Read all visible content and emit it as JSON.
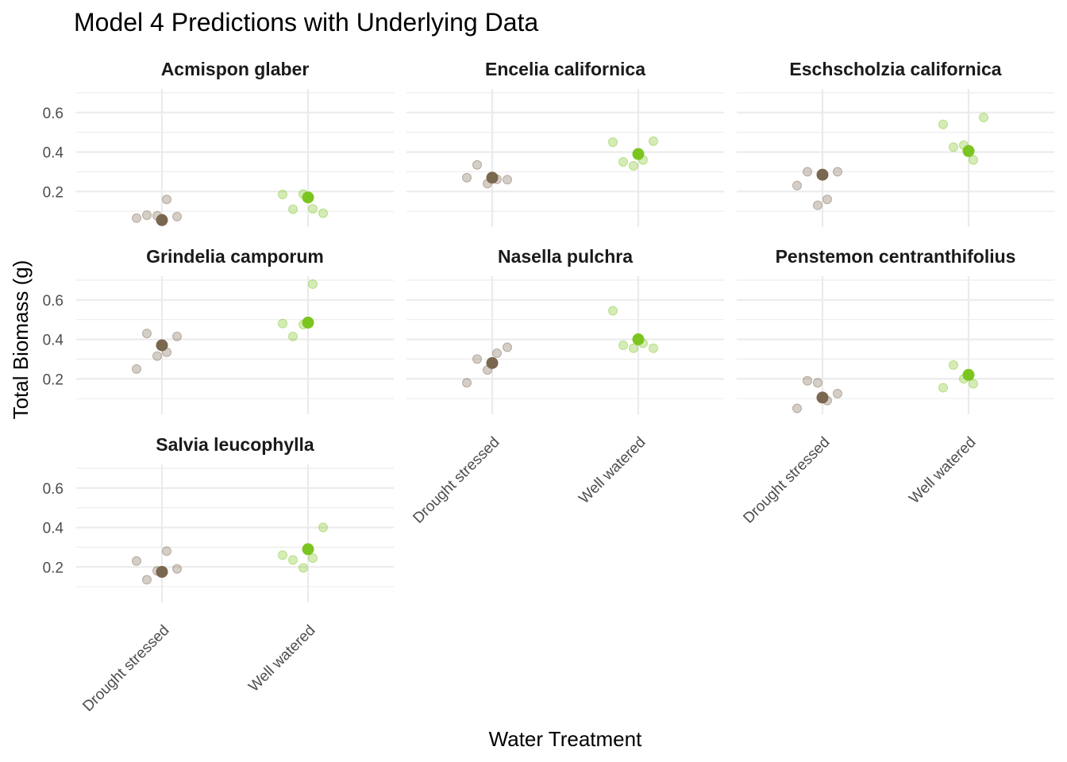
{
  "chart_data": {
    "type": "scatter",
    "title": "Model 4 Predictions with Underlying Data",
    "xlabel": "Water Treatment",
    "ylabel": "Total Biomass (g)",
    "categories": [
      "Drought stressed",
      "Well watered"
    ],
    "y_ticks": [
      0.2,
      0.4,
      0.6
    ],
    "ylim": [
      0.02,
      0.72
    ],
    "grid": true,
    "legend": "none",
    "colors": {
      "Drought stressed": "#7a6750",
      "Well watered": "#7cc520"
    },
    "panels": [
      {
        "species": "Acmispon glaber",
        "prediction": {
          "Drought stressed": 0.055,
          "Well watered": 0.17
        },
        "observations": {
          "Drought stressed": [
            0.065,
            0.08,
            0.077,
            0.16,
            0.073
          ],
          "Well watered": [
            0.185,
            0.11,
            0.187,
            0.112,
            0.09
          ]
        }
      },
      {
        "species": "Encelia californica",
        "prediction": {
          "Drought stressed": 0.27,
          "Well watered": 0.39
        },
        "observations": {
          "Drought stressed": [
            0.27,
            0.335,
            0.24,
            0.262,
            0.26
          ],
          "Well watered": [
            0.45,
            0.35,
            0.33,
            0.36,
            0.455
          ]
        }
      },
      {
        "species": "Eschscholzia californica",
        "prediction": {
          "Drought stressed": 0.285,
          "Well watered": 0.405
        },
        "observations": {
          "Drought stressed": [
            0.23,
            0.3,
            0.13,
            0.16,
            0.3
          ],
          "Well watered": [
            0.54,
            0.425,
            0.435,
            0.36,
            0.575
          ]
        }
      },
      {
        "species": "Grindelia camporum",
        "prediction": {
          "Drought stressed": 0.37,
          "Well watered": 0.485
        },
        "observations": {
          "Drought stressed": [
            0.25,
            0.43,
            0.315,
            0.335,
            0.415
          ],
          "Well watered": [
            0.48,
            0.415,
            0.475,
            0.68
          ]
        }
      },
      {
        "species": "Nasella pulchra",
        "prediction": {
          "Drought stressed": 0.28,
          "Well watered": 0.4
        },
        "observations": {
          "Drought stressed": [
            0.18,
            0.3,
            0.245,
            0.33,
            0.36
          ],
          "Well watered": [
            0.545,
            0.37,
            0.355,
            0.38,
            0.355
          ]
        }
      },
      {
        "species": "Penstemon centranthifolius",
        "prediction": {
          "Drought stressed": 0.105,
          "Well watered": 0.22
        },
        "observations": {
          "Drought stressed": [
            0.05,
            0.19,
            0.18,
            0.09,
            0.125
          ],
          "Well watered": [
            0.155,
            0.27,
            0.2,
            0.175
          ]
        }
      },
      {
        "species": "Salvia leucophylla",
        "prediction": {
          "Drought stressed": 0.175,
          "Well watered": 0.29
        },
        "observations": {
          "Drought stressed": [
            0.23,
            0.135,
            0.18,
            0.28,
            0.19
          ],
          "Well watered": [
            0.26,
            0.235,
            0.195,
            0.245,
            0.4
          ]
        }
      }
    ]
  }
}
